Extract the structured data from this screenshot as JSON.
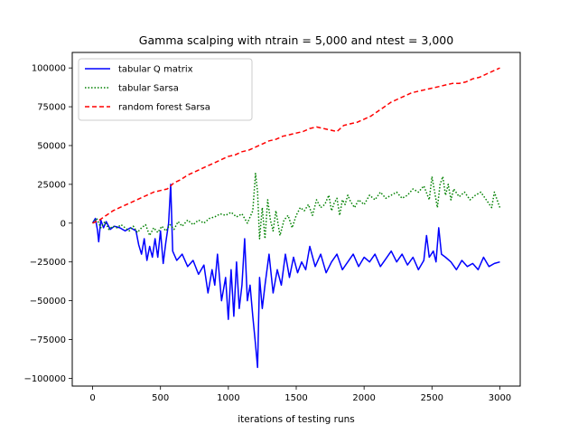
{
  "chart_data": {
    "type": "line",
    "title": "Gamma scalping with ntrain = 5,000 and ntest = 3,000",
    "xlabel": "iterations of testing runs",
    "ylabel": "",
    "xlim": [
      -150,
      3150
    ],
    "ylim": [
      -105000,
      110000
    ],
    "x_ticks": [
      0,
      500,
      1000,
      1500,
      2000,
      2500,
      3000
    ],
    "x_tick_labels": [
      "0",
      "500",
      "1000",
      "1500",
      "2000",
      "2500",
      "3000"
    ],
    "y_ticks": [
      -100000,
      -75000,
      -50000,
      -25000,
      0,
      25000,
      50000,
      75000,
      100000
    ],
    "y_tick_labels": [
      "−100000",
      "−75000",
      "−50000",
      "−25000",
      "0",
      "25000",
      "50000",
      "75000",
      "100000"
    ],
    "grid": false,
    "legend_position": "top-left",
    "series": [
      {
        "name": "tabular Q matrix",
        "color": "#0000ff",
        "style": "solid",
        "points": [
          [
            0,
            0
          ],
          [
            20,
            3000
          ],
          [
            35,
            -4000
          ],
          [
            45,
            -12000
          ],
          [
            60,
            2000
          ],
          [
            80,
            -3000
          ],
          [
            100,
            1000
          ],
          [
            130,
            -4000
          ],
          [
            160,
            -2000
          ],
          [
            200,
            -3000
          ],
          [
            240,
            -5000
          ],
          [
            280,
            -3000
          ],
          [
            320,
            -5000
          ],
          [
            340,
            -14000
          ],
          [
            360,
            -20000
          ],
          [
            380,
            -10000
          ],
          [
            400,
            -24000
          ],
          [
            420,
            -15000
          ],
          [
            440,
            -22000
          ],
          [
            460,
            -10000
          ],
          [
            480,
            -22000
          ],
          [
            500,
            -5000
          ],
          [
            520,
            -26000
          ],
          [
            540,
            -12000
          ],
          [
            560,
            0
          ],
          [
            575,
            25000
          ],
          [
            590,
            -18000
          ],
          [
            620,
            -24000
          ],
          [
            660,
            -20000
          ],
          [
            700,
            -28000
          ],
          [
            740,
            -24000
          ],
          [
            780,
            -33000
          ],
          [
            820,
            -27000
          ],
          [
            850,
            -45000
          ],
          [
            880,
            -30000
          ],
          [
            900,
            -40000
          ],
          [
            920,
            -20000
          ],
          [
            950,
            -50000
          ],
          [
            980,
            -35000
          ],
          [
            1000,
            -62000
          ],
          [
            1020,
            -30000
          ],
          [
            1040,
            -60000
          ],
          [
            1060,
            -25000
          ],
          [
            1080,
            -55000
          ],
          [
            1100,
            -40000
          ],
          [
            1120,
            -10000
          ],
          [
            1140,
            -50000
          ],
          [
            1160,
            -40000
          ],
          [
            1180,
            -60000
          ],
          [
            1200,
            -78000
          ],
          [
            1215,
            -93000
          ],
          [
            1230,
            -35000
          ],
          [
            1250,
            -55000
          ],
          [
            1270,
            -40000
          ],
          [
            1300,
            -20000
          ],
          [
            1330,
            -45000
          ],
          [
            1360,
            -30000
          ],
          [
            1390,
            -40000
          ],
          [
            1420,
            -20000
          ],
          [
            1450,
            -35000
          ],
          [
            1480,
            -22000
          ],
          [
            1510,
            -32000
          ],
          [
            1540,
            -25000
          ],
          [
            1570,
            -30000
          ],
          [
            1600,
            -15000
          ],
          [
            1640,
            -28000
          ],
          [
            1680,
            -20000
          ],
          [
            1720,
            -32000
          ],
          [
            1760,
            -25000
          ],
          [
            1800,
            -20000
          ],
          [
            1840,
            -30000
          ],
          [
            1880,
            -25000
          ],
          [
            1920,
            -20000
          ],
          [
            1960,
            -28000
          ],
          [
            2000,
            -22000
          ],
          [
            2040,
            -25000
          ],
          [
            2080,
            -20000
          ],
          [
            2120,
            -28000
          ],
          [
            2160,
            -23000
          ],
          [
            2200,
            -18000
          ],
          [
            2240,
            -25000
          ],
          [
            2280,
            -20000
          ],
          [
            2320,
            -27000
          ],
          [
            2360,
            -22000
          ],
          [
            2400,
            -30000
          ],
          [
            2440,
            -24000
          ],
          [
            2460,
            -8000
          ],
          [
            2480,
            -22000
          ],
          [
            2510,
            -18000
          ],
          [
            2530,
            -25000
          ],
          [
            2550,
            -3000
          ],
          [
            2570,
            -20000
          ],
          [
            2600,
            -22000
          ],
          [
            2640,
            -25000
          ],
          [
            2680,
            -30000
          ],
          [
            2720,
            -24000
          ],
          [
            2760,
            -28000
          ],
          [
            2800,
            -26000
          ],
          [
            2840,
            -30000
          ],
          [
            2880,
            -22000
          ],
          [
            2920,
            -28000
          ],
          [
            2960,
            -26000
          ],
          [
            3000,
            -25000
          ]
        ]
      },
      {
        "name": "tabular Sarsa",
        "color": "#008000",
        "style": "dotted",
        "points": [
          [
            0,
            0
          ],
          [
            30,
            3000
          ],
          [
            60,
            -3000
          ],
          [
            90,
            1000
          ],
          [
            120,
            -4000
          ],
          [
            150,
            -2000
          ],
          [
            180,
            -3000
          ],
          [
            210,
            -1000
          ],
          [
            240,
            -3000
          ],
          [
            270,
            -5000
          ],
          [
            300,
            -2000
          ],
          [
            330,
            -6000
          ],
          [
            360,
            -3000
          ],
          [
            390,
            -1000
          ],
          [
            420,
            -8000
          ],
          [
            450,
            -3000
          ],
          [
            480,
            -6000
          ],
          [
            510,
            -2000
          ],
          [
            540,
            -5000
          ],
          [
            570,
            -1000
          ],
          [
            600,
            -4000
          ],
          [
            630,
            1000
          ],
          [
            660,
            -2000
          ],
          [
            700,
            2000
          ],
          [
            740,
            -1000
          ],
          [
            780,
            2000
          ],
          [
            820,
            0
          ],
          [
            860,
            3000
          ],
          [
            900,
            4000
          ],
          [
            940,
            6000
          ],
          [
            980,
            5000
          ],
          [
            1020,
            7000
          ],
          [
            1060,
            4000
          ],
          [
            1100,
            6000
          ],
          [
            1140,
            0
          ],
          [
            1180,
            8000
          ],
          [
            1200,
            32000
          ],
          [
            1215,
            20000
          ],
          [
            1230,
            -10000
          ],
          [
            1250,
            10000
          ],
          [
            1270,
            -10000
          ],
          [
            1290,
            15000
          ],
          [
            1310,
            2000
          ],
          [
            1330,
            -5000
          ],
          [
            1350,
            8000
          ],
          [
            1380,
            -8000
          ],
          [
            1410,
            2000
          ],
          [
            1440,
            5000
          ],
          [
            1470,
            -3000
          ],
          [
            1500,
            5000
          ],
          [
            1530,
            10000
          ],
          [
            1560,
            8000
          ],
          [
            1590,
            12000
          ],
          [
            1620,
            5000
          ],
          [
            1650,
            15000
          ],
          [
            1680,
            10000
          ],
          [
            1710,
            12000
          ],
          [
            1740,
            18000
          ],
          [
            1760,
            8000
          ],
          [
            1780,
            13000
          ],
          [
            1800,
            16000
          ],
          [
            1820,
            5000
          ],
          [
            1840,
            15000
          ],
          [
            1860,
            12000
          ],
          [
            1880,
            18000
          ],
          [
            1900,
            14000
          ],
          [
            1930,
            10000
          ],
          [
            1960,
            15000
          ],
          [
            2000,
            12000
          ],
          [
            2040,
            18000
          ],
          [
            2080,
            15000
          ],
          [
            2120,
            20000
          ],
          [
            2160,
            16000
          ],
          [
            2200,
            18000
          ],
          [
            2240,
            20000
          ],
          [
            2280,
            16000
          ],
          [
            2320,
            18000
          ],
          [
            2360,
            22000
          ],
          [
            2400,
            20000
          ],
          [
            2440,
            24000
          ],
          [
            2480,
            15000
          ],
          [
            2500,
            30000
          ],
          [
            2520,
            20000
          ],
          [
            2540,
            10000
          ],
          [
            2560,
            25000
          ],
          [
            2580,
            30000
          ],
          [
            2600,
            18000
          ],
          [
            2620,
            25000
          ],
          [
            2640,
            15000
          ],
          [
            2660,
            22000
          ],
          [
            2700,
            17000
          ],
          [
            2740,
            20000
          ],
          [
            2780,
            15000
          ],
          [
            2820,
            18000
          ],
          [
            2860,
            20000
          ],
          [
            2900,
            15000
          ],
          [
            2940,
            10000
          ],
          [
            2960,
            20000
          ],
          [
            2980,
            15000
          ],
          [
            3000,
            10000
          ]
        ]
      },
      {
        "name": "random forest Sarsa",
        "color": "#ff0000",
        "style": "dashed",
        "points": [
          [
            0,
            0
          ],
          [
            50,
            2000
          ],
          [
            100,
            5000
          ],
          [
            150,
            8000
          ],
          [
            200,
            10000
          ],
          [
            250,
            12000
          ],
          [
            300,
            14000
          ],
          [
            350,
            16000
          ],
          [
            400,
            18000
          ],
          [
            450,
            20000
          ],
          [
            500,
            21000
          ],
          [
            550,
            22000
          ],
          [
            600,
            26000
          ],
          [
            650,
            28000
          ],
          [
            700,
            31000
          ],
          [
            750,
            33000
          ],
          [
            800,
            35000
          ],
          [
            850,
            37000
          ],
          [
            900,
            39000
          ],
          [
            950,
            41000
          ],
          [
            1000,
            43000
          ],
          [
            1050,
            44000
          ],
          [
            1100,
            46000
          ],
          [
            1150,
            47000
          ],
          [
            1200,
            49000
          ],
          [
            1250,
            51000
          ],
          [
            1300,
            53000
          ],
          [
            1350,
            54000
          ],
          [
            1400,
            56000
          ],
          [
            1450,
            57000
          ],
          [
            1500,
            58000
          ],
          [
            1550,
            59000
          ],
          [
            1600,
            61000
          ],
          [
            1650,
            62000
          ],
          [
            1700,
            61000
          ],
          [
            1750,
            60000
          ],
          [
            1800,
            59000
          ],
          [
            1850,
            63000
          ],
          [
            1900,
            64000
          ],
          [
            1950,
            65000
          ],
          [
            2000,
            67000
          ],
          [
            2050,
            69000
          ],
          [
            2100,
            72000
          ],
          [
            2150,
            75000
          ],
          [
            2200,
            78000
          ],
          [
            2250,
            80000
          ],
          [
            2300,
            82000
          ],
          [
            2350,
            84000
          ],
          [
            2400,
            85000
          ],
          [
            2450,
            86000
          ],
          [
            2500,
            87000
          ],
          [
            2550,
            88000
          ],
          [
            2600,
            89000
          ],
          [
            2650,
            90000
          ],
          [
            2700,
            90000
          ],
          [
            2750,
            91000
          ],
          [
            2800,
            93000
          ],
          [
            2850,
            94000
          ],
          [
            2900,
            96000
          ],
          [
            2950,
            98000
          ],
          [
            3000,
            100000
          ]
        ]
      }
    ]
  }
}
